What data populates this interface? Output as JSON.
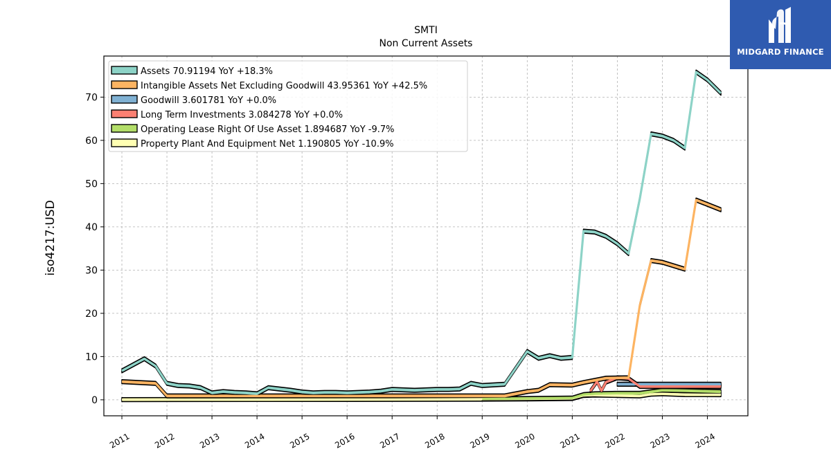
{
  "brand": {
    "name": "MIDGARD FINANCE",
    "color": "#2f5bb0"
  },
  "chart_data": {
    "type": "area",
    "title": "SMTI",
    "subtitle": "Non Current  Assets",
    "ylabel": "iso4217:USD",
    "xlabel": "",
    "xlim": [
      2010.6,
      2024.9
    ],
    "ylim": [
      -3.7,
      79.5
    ],
    "yticks": [
      0,
      10,
      20,
      30,
      40,
      50,
      60,
      70
    ],
    "xticks": [
      2011,
      2012,
      2013,
      2014,
      2015,
      2016,
      2017,
      2018,
      2019,
      2020,
      2021,
      2022,
      2023,
      2024
    ],
    "grid": true,
    "legend_position": "top-left",
    "series": [
      {
        "name": "Assets  70.91194 YoY +18.3%",
        "color": "#8dd3c7",
        "points": [
          [
            2011.0,
            6.7
          ],
          [
            2011.5,
            9.5
          ],
          [
            2011.75,
            7.8
          ],
          [
            2012.0,
            3.8
          ],
          [
            2012.25,
            3.3
          ],
          [
            2012.5,
            3.2
          ],
          [
            2012.75,
            2.8
          ],
          [
            2013.0,
            1.6
          ],
          [
            2013.25,
            1.9
          ],
          [
            2013.5,
            1.7
          ],
          [
            2013.75,
            1.6
          ],
          [
            2014.0,
            1.4
          ],
          [
            2014.25,
            2.8
          ],
          [
            2014.5,
            2.5
          ],
          [
            2014.75,
            2.2
          ],
          [
            2015.0,
            1.8
          ],
          [
            2015.25,
            1.6
          ],
          [
            2015.5,
            1.7
          ],
          [
            2015.75,
            1.7
          ],
          [
            2016.0,
            1.6
          ],
          [
            2016.25,
            1.7
          ],
          [
            2016.5,
            1.8
          ],
          [
            2016.75,
            2.0
          ],
          [
            2017.0,
            2.4
          ],
          [
            2017.25,
            2.3
          ],
          [
            2017.5,
            2.2
          ],
          [
            2017.75,
            2.3
          ],
          [
            2018.0,
            2.4
          ],
          [
            2018.25,
            2.4
          ],
          [
            2018.5,
            2.5
          ],
          [
            2018.75,
            3.8
          ],
          [
            2019.0,
            3.3
          ],
          [
            2019.5,
            3.6
          ],
          [
            2020.0,
            11.2
          ],
          [
            2020.25,
            9.6
          ],
          [
            2020.5,
            10.2
          ],
          [
            2020.75,
            9.6
          ],
          [
            2021.0,
            9.8
          ],
          [
            2021.25,
            39.0
          ],
          [
            2021.5,
            38.8
          ],
          [
            2021.75,
            37.8
          ],
          [
            2022.0,
            36.1
          ],
          [
            2022.25,
            33.8
          ],
          [
            2022.5,
            46.5
          ],
          [
            2022.75,
            61.5
          ],
          [
            2023.0,
            61.0
          ],
          [
            2023.25,
            60.0
          ],
          [
            2023.5,
            58.2
          ],
          [
            2023.75,
            75.8
          ],
          [
            2024.0,
            74.0
          ],
          [
            2024.3,
            70.9
          ]
        ]
      },
      {
        "name": "Intangible Assets Net Excluding Goodwill  43.95361 YoY +42.5%",
        "color": "#fdb462",
        "points": [
          [
            2011.0,
            4.2
          ],
          [
            2011.75,
            3.8
          ],
          [
            2012.0,
            0.9
          ],
          [
            2019.5,
            0.9
          ],
          [
            2020.0,
            1.9
          ],
          [
            2020.25,
            2.2
          ],
          [
            2020.5,
            3.5
          ],
          [
            2021.0,
            3.4
          ],
          [
            2021.25,
            4.0
          ],
          [
            2021.75,
            5.0
          ],
          [
            2022.25,
            5.1
          ],
          [
            2022.5,
            21.8
          ],
          [
            2022.75,
            32.2
          ],
          [
            2023.0,
            31.8
          ],
          [
            2023.5,
            30.2
          ],
          [
            2023.75,
            46.2
          ],
          [
            2024.0,
            45.2
          ],
          [
            2024.3,
            43.95
          ]
        ]
      },
      {
        "name": "Goodwill  3.601781 YoY +0.0%",
        "color": "#80b1d3",
        "points": [
          [
            2022.0,
            3.6
          ],
          [
            2022.5,
            3.6
          ],
          [
            2022.75,
            3.6
          ],
          [
            2023.0,
            3.6
          ],
          [
            2023.25,
            3.6
          ],
          [
            2023.5,
            3.6
          ],
          [
            2023.75,
            3.6
          ],
          [
            2024.0,
            3.6
          ],
          [
            2024.3,
            3.6
          ]
        ]
      },
      {
        "name": "Long Term Investments  3.084278 YoY +0.0%",
        "color": "#fb8072",
        "points": [
          [
            2021.4,
            2.0
          ],
          [
            2021.55,
            4.2
          ],
          [
            2021.65,
            2.1
          ],
          [
            2021.75,
            4.1
          ],
          [
            2022.0,
            5.1
          ],
          [
            2022.25,
            4.9
          ],
          [
            2022.5,
            3.1
          ],
          [
            2023.0,
            3.08
          ],
          [
            2024.3,
            3.08
          ]
        ]
      },
      {
        "name": "Operating Lease Right Of Use Asset  1.894687 YoY -9.7%",
        "color": "#b3de69",
        "points": [
          [
            2019.0,
            0.2
          ],
          [
            2020.0,
            0.3
          ],
          [
            2021.0,
            0.4
          ],
          [
            2021.25,
            1.2
          ],
          [
            2021.5,
            1.4
          ],
          [
            2022.0,
            1.5
          ],
          [
            2022.5,
            1.5
          ],
          [
            2023.0,
            2.2
          ],
          [
            2023.5,
            2.1
          ],
          [
            2024.3,
            1.89
          ]
        ]
      },
      {
        "name": "Property Plant And Equipment Net  1.190805 YoY -10.9%",
        "color": "#ffffb3",
        "points": [
          [
            2011.0,
            0.05
          ],
          [
            2017.0,
            0.1
          ],
          [
            2019.0,
            0.15
          ],
          [
            2020.0,
            0.2
          ],
          [
            2021.0,
            0.3
          ],
          [
            2021.25,
            1.0
          ],
          [
            2021.5,
            1.1
          ],
          [
            2022.0,
            1.0
          ],
          [
            2022.5,
            0.9
          ],
          [
            2022.75,
            1.3
          ],
          [
            2023.0,
            1.4
          ],
          [
            2023.5,
            1.2
          ],
          [
            2024.3,
            1.19
          ]
        ]
      }
    ]
  }
}
